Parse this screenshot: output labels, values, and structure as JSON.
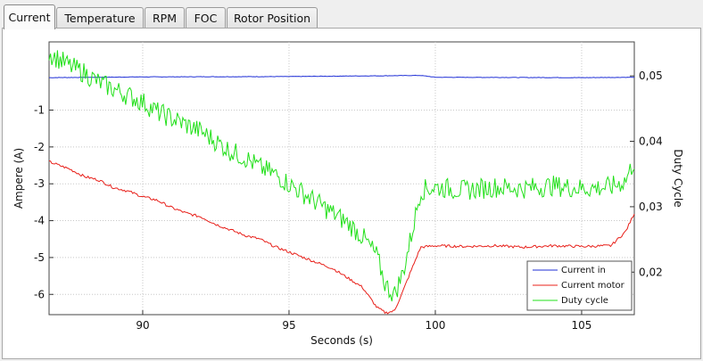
{
  "tabs": [
    {
      "label": "Current",
      "active": true
    },
    {
      "label": "Temperature",
      "active": false
    },
    {
      "label": "RPM",
      "active": false
    },
    {
      "label": "FOC",
      "active": false
    },
    {
      "label": "Rotor Position",
      "active": false
    }
  ],
  "chart_data": {
    "type": "line",
    "xlabel": "Seconds (s)",
    "ylabel": "Ampere (A)",
    "y2label": "Duty Cycle",
    "xlim": [
      86.8,
      106.8
    ],
    "ylim": [
      -6.55,
      0.85
    ],
    "y2lim": [
      0.0135,
      0.0552
    ],
    "x_ticks": [
      "90",
      "95",
      "100",
      "105"
    ],
    "y_ticks": [
      "-1",
      "-2",
      "-3",
      "-4",
      "-5",
      "-6"
    ],
    "y2_ticks": [
      "0,05",
      "0,04",
      "0,03",
      "0,02"
    ],
    "grid": true,
    "legend_position": "bottom-right",
    "colors": {
      "current_in": "#1f2fd6",
      "current_motor": "#e8201a",
      "duty_cycle": "#22e01a"
    },
    "series": [
      {
        "name": "Current in",
        "axis": "left",
        "x": [
          86.8,
          90,
          95,
          99.5,
          100,
          105,
          106.8
        ],
        "values": [
          -0.12,
          -0.1,
          -0.09,
          -0.06,
          -0.11,
          -0.12,
          -0.11
        ]
      },
      {
        "name": "Current motor",
        "axis": "left",
        "x": [
          86.8,
          87.5,
          88.0,
          88.5,
          89.0,
          89.5,
          90.0,
          90.5,
          91.0,
          91.5,
          92.0,
          92.5,
          93.0,
          93.5,
          94.0,
          94.5,
          95.0,
          95.5,
          96.0,
          96.5,
          97.0,
          97.5,
          98.0,
          98.3,
          98.6,
          98.9,
          99.2,
          99.5,
          100.0,
          101.0,
          102.0,
          103.0,
          104.0,
          105.0,
          106.0,
          106.5,
          106.8
        ],
        "values": [
          -2.4,
          -2.6,
          -2.8,
          -2.9,
          -3.1,
          -3.2,
          -3.35,
          -3.45,
          -3.65,
          -3.8,
          -3.9,
          -4.1,
          -4.25,
          -4.4,
          -4.5,
          -4.7,
          -4.85,
          -5.0,
          -5.15,
          -5.3,
          -5.55,
          -5.8,
          -6.35,
          -6.5,
          -6.45,
          -5.9,
          -5.3,
          -4.72,
          -4.68,
          -4.7,
          -4.68,
          -4.72,
          -4.68,
          -4.7,
          -4.68,
          -4.3,
          -3.8
        ]
      },
      {
        "name": "Duty cycle",
        "axis": "right",
        "x": [
          86.8,
          87.5,
          88.0,
          88.5,
          89.0,
          89.5,
          90.0,
          90.5,
          91.0,
          91.5,
          92.0,
          92.5,
          93.0,
          93.5,
          94.0,
          94.5,
          95.0,
          95.5,
          96.0,
          96.5,
          97.0,
          97.5,
          98.0,
          98.3,
          98.6,
          98.9,
          99.2,
          99.5,
          100.0,
          101.0,
          102.0,
          103.0,
          104.0,
          105.0,
          106.0,
          106.5,
          106.8
        ],
        "values": [
          0.0535,
          0.0515,
          0.0505,
          0.049,
          0.048,
          0.047,
          0.046,
          0.0445,
          0.0435,
          0.0425,
          0.0415,
          0.04,
          0.0385,
          0.0375,
          0.036,
          0.035,
          0.0335,
          0.032,
          0.0305,
          0.029,
          0.0275,
          0.0255,
          0.0225,
          0.018,
          0.0165,
          0.02,
          0.026,
          0.0325,
          0.033,
          0.0325,
          0.033,
          0.0328,
          0.0332,
          0.0328,
          0.033,
          0.034,
          0.037
        ]
      }
    ]
  }
}
